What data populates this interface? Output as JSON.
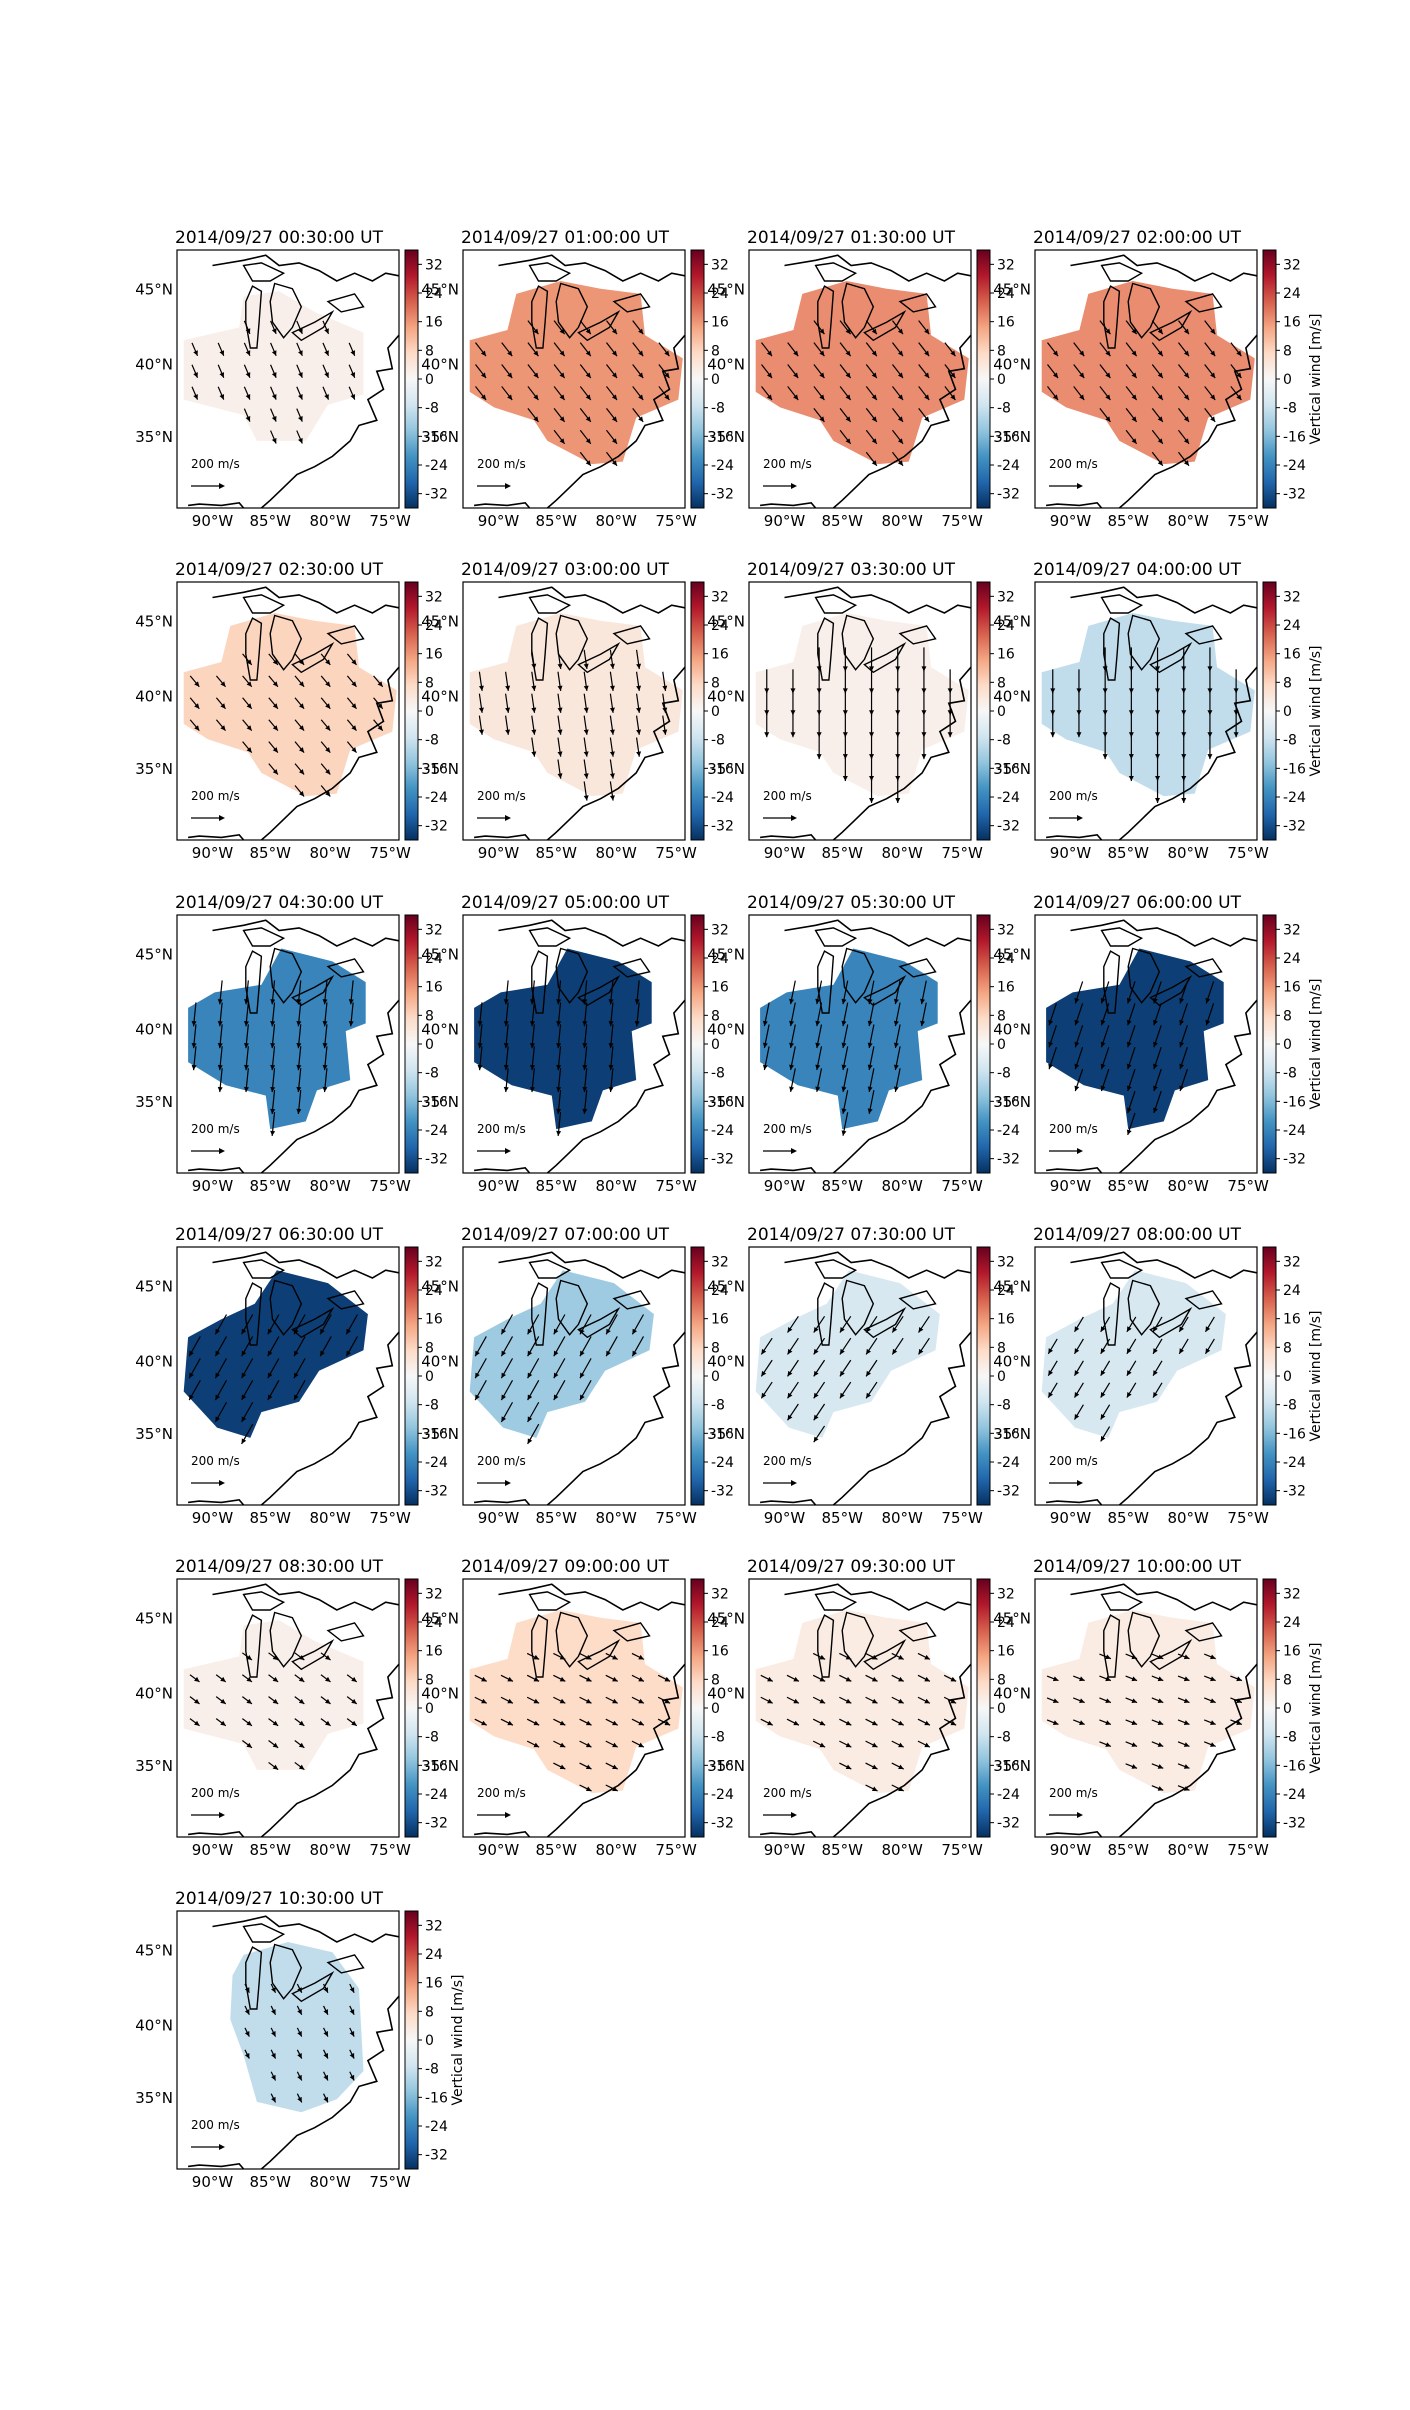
{
  "figure": {
    "ncols": 4,
    "colorbar_label": "Vertical wind [m/s]",
    "colorbar_ticks": [
      "32",
      "24",
      "16",
      "8",
      "0",
      "-8",
      "-16",
      "-24",
      "-32"
    ],
    "colorbar_range": [
      -36,
      36
    ],
    "lat_tick_labels": [
      "45°N",
      "40°N",
      "35°N"
    ],
    "lon_tick_labels": [
      "90°W",
      "85°W",
      "80°W",
      "75°W"
    ],
    "reference_arrow_label": "200 m/s",
    "reference_arrow_value": 200
  },
  "chart_data": [
    {
      "type": "heatmap",
      "title": "2014/09/27 00:30:00 UT",
      "vertical_wind": 2,
      "arrow_dir": [
        0.15,
        0.35
      ],
      "region": "wide_small",
      "colorbar_label": ""
    },
    {
      "type": "heatmap",
      "title": "2014/09/27 01:00:00 UT",
      "vertical_wind": 16,
      "arrow_dir": [
        0.35,
        0.45
      ],
      "region": "wide",
      "colorbar_label": ""
    },
    {
      "type": "heatmap",
      "title": "2014/09/27 01:30:00 UT",
      "vertical_wind": 17,
      "arrow_dir": [
        0.35,
        0.45
      ],
      "region": "wide",
      "colorbar_label": ""
    },
    {
      "type": "heatmap",
      "title": "2014/09/27 02:00:00 UT",
      "vertical_wind": 17,
      "arrow_dir": [
        0.35,
        0.45
      ],
      "region": "wide",
      "colorbar_label": "Vertical wind [m/s]"
    },
    {
      "type": "heatmap",
      "title": "2014/09/27 02:30:00 UT",
      "vertical_wind": 8,
      "arrow_dir": [
        0.25,
        0.3
      ],
      "region": "wide",
      "colorbar_label": ""
    },
    {
      "type": "heatmap",
      "title": "2014/09/27 03:00:00 UT",
      "vertical_wind": 4,
      "arrow_dir": [
        0.1,
        0.7
      ],
      "region": "wide",
      "colorbar_label": ""
    },
    {
      "type": "heatmap",
      "title": "2014/09/27 03:30:00 UT",
      "vertical_wind": 2,
      "arrow_dir": [
        0.0,
        1.0
      ],
      "region": "wide",
      "colorbar_label": ""
    },
    {
      "type": "heatmap",
      "title": "2014/09/27 04:00:00 UT",
      "vertical_wind": -9,
      "arrow_dir": [
        0.0,
        1.0
      ],
      "region": "wide",
      "colorbar_label": "Vertical wind [m/s]"
    },
    {
      "type": "heatmap",
      "title": "2014/09/27 04:30:00 UT",
      "vertical_wind": -24,
      "arrow_dir": [
        -0.1,
        1.0
      ],
      "region": "mid",
      "colorbar_label": ""
    },
    {
      "type": "heatmap",
      "title": "2014/09/27 05:00:00 UT",
      "vertical_wind": -34,
      "arrow_dir": [
        -0.1,
        1.0
      ],
      "region": "mid",
      "colorbar_label": ""
    },
    {
      "type": "heatmap",
      "title": "2014/09/27 05:30:00 UT",
      "vertical_wind": -24,
      "arrow_dir": [
        -0.2,
        1.0
      ],
      "region": "mid",
      "colorbar_label": ""
    },
    {
      "type": "heatmap",
      "title": "2014/09/27 06:00:00 UT",
      "vertical_wind": -34,
      "arrow_dir": [
        -0.3,
        0.9
      ],
      "region": "mid",
      "colorbar_label": "Vertical wind [m/s]"
    },
    {
      "type": "heatmap",
      "title": "2014/09/27 06:30:00 UT",
      "vertical_wind": -34,
      "arrow_dir": [
        -0.45,
        0.8
      ],
      "region": "upper",
      "colorbar_label": ""
    },
    {
      "type": "heatmap",
      "title": "2014/09/27 07:00:00 UT",
      "vertical_wind": -13,
      "arrow_dir": [
        -0.45,
        0.8
      ],
      "region": "upper",
      "colorbar_label": ""
    },
    {
      "type": "heatmap",
      "title": "2014/09/27 07:30:00 UT",
      "vertical_wind": -6,
      "arrow_dir": [
        -0.4,
        0.6
      ],
      "region": "upper",
      "colorbar_label": ""
    },
    {
      "type": "heatmap",
      "title": "2014/09/27 08:00:00 UT",
      "vertical_wind": -6,
      "arrow_dir": [
        -0.3,
        0.5
      ],
      "region": "upper",
      "colorbar_label": "Vertical wind [m/s]"
    },
    {
      "type": "heatmap",
      "title": "2014/09/27 08:30:00 UT",
      "vertical_wind": 2,
      "arrow_dir": [
        0.2,
        0.15
      ],
      "region": "wide_small",
      "colorbar_label": ""
    },
    {
      "type": "heatmap",
      "title": "2014/09/27 09:00:00 UT",
      "vertical_wind": 7,
      "arrow_dir": [
        0.3,
        0.15
      ],
      "region": "wide",
      "colorbar_label": ""
    },
    {
      "type": "heatmap",
      "title": "2014/09/27 09:30:00 UT",
      "vertical_wind": 3,
      "arrow_dir": [
        0.3,
        0.15
      ],
      "region": "wide",
      "colorbar_label": ""
    },
    {
      "type": "heatmap",
      "title": "2014/09/27 10:00:00 UT",
      "vertical_wind": 3,
      "arrow_dir": [
        0.25,
        0.1
      ],
      "region": "wide",
      "colorbar_label": "Vertical wind [m/s]"
    },
    {
      "type": "heatmap",
      "title": "2014/09/27 10:30:00 UT",
      "vertical_wind": -9,
      "arrow_dir": [
        0.05,
        0.1
      ],
      "region": "narrow",
      "colorbar_label": "Vertical wind [m/s]"
    }
  ]
}
